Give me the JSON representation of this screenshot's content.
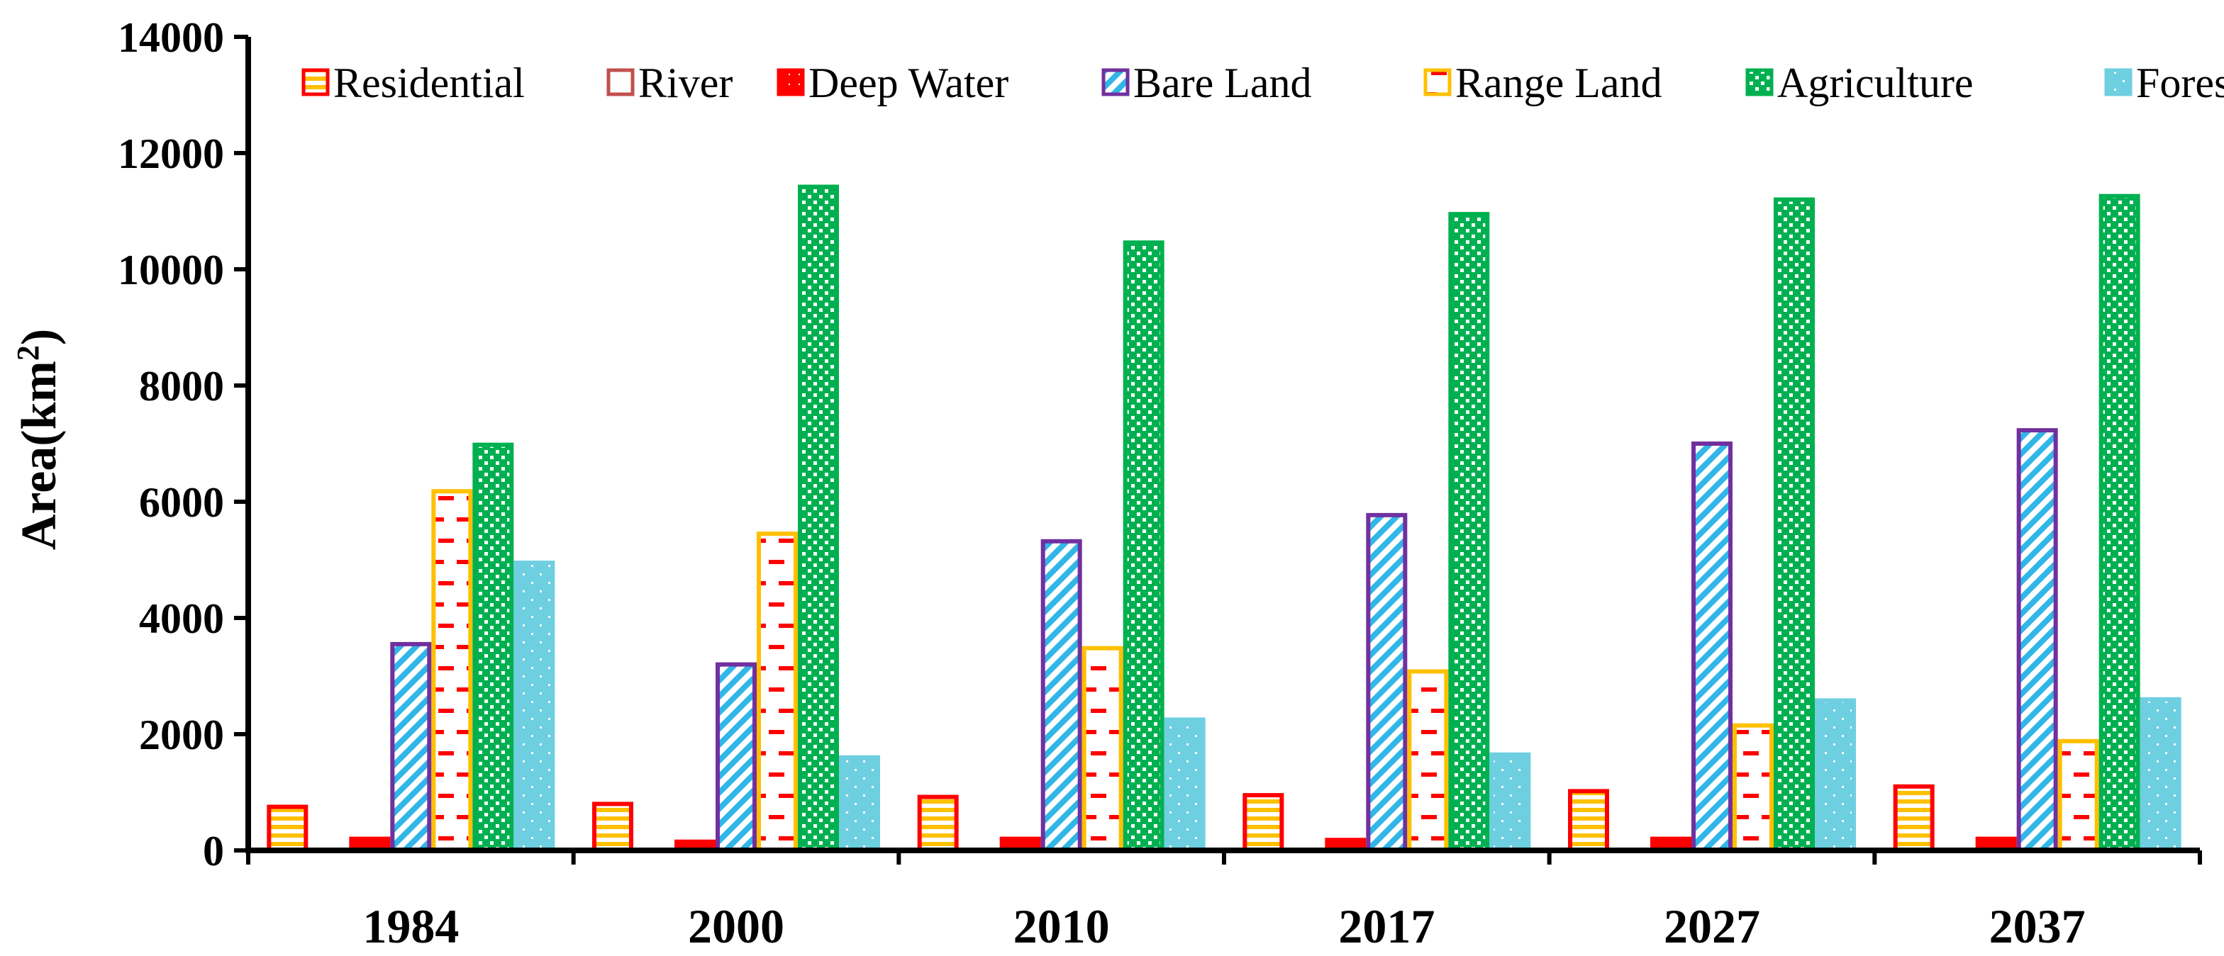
{
  "chart_data": {
    "type": "bar",
    "title": "",
    "xlabel": "",
    "ylabel": "Area(km",
    "ylabel_sup": "2",
    "ylabel_close": ")",
    "ylim": [
      0,
      14000
    ],
    "yticks": [
      0,
      2000,
      4000,
      6000,
      8000,
      10000,
      12000,
      14000
    ],
    "grid": false,
    "legend_position": "top",
    "categories": [
      "1984",
      "2000",
      "2010",
      "2017",
      "2027",
      "2037"
    ],
    "series": [
      {
        "name": "Residential",
        "values": [
          750,
          800,
          920,
          950,
          1020,
          1100
        ],
        "stroke": "#FF0000",
        "fill": "#FFC000",
        "pattern": "hstripes"
      },
      {
        "name": "River",
        "values": [
          0,
          0,
          0,
          0,
          0,
          0
        ],
        "stroke": "#C0504D",
        "fill": "#C0504D",
        "pattern": "solid"
      },
      {
        "name": "Deep Water",
        "values": [
          200,
          150,
          200,
          180,
          200,
          200
        ],
        "stroke": "#FF0000",
        "fill": "#FF0000",
        "pattern": "dots-red"
      },
      {
        "name": "Bare Land",
        "values": [
          3550,
          3200,
          5320,
          5770,
          7000,
          7230
        ],
        "stroke": "#7030A0",
        "fill": "#31B6E7",
        "pattern": "diag"
      },
      {
        "name": "Range Land",
        "values": [
          6180,
          5450,
          3480,
          3080,
          2150,
          1880
        ],
        "stroke": "#FFC000",
        "fill": "#FF0000",
        "pattern": "dashes"
      },
      {
        "name": "Agriculture",
        "values": [
          6980,
          11420,
          10460,
          10950,
          11200,
          11260
        ],
        "stroke": "#00B050",
        "fill": "#00B050",
        "pattern": "checker"
      },
      {
        "name": "Forest",
        "values": [
          4950,
          1600,
          2250,
          1650,
          2580,
          2600
        ],
        "stroke": "#6ECFE0",
        "fill": "#6ECFE0",
        "pattern": "dots-white"
      }
    ]
  }
}
